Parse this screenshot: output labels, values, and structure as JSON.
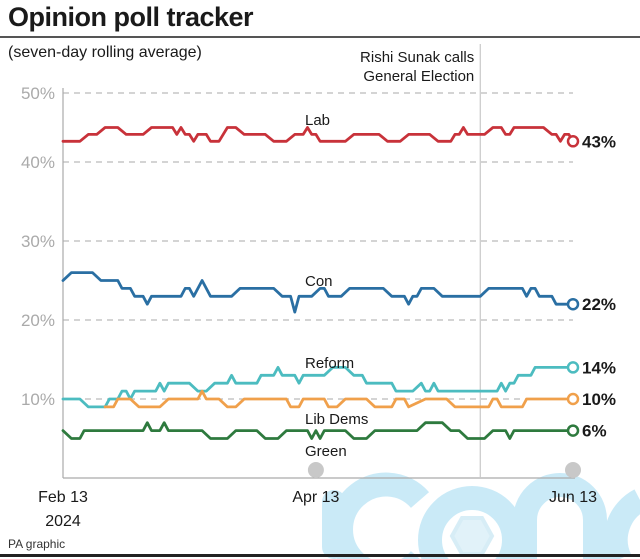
{
  "title": "Opinion poll tracker",
  "subtitle": "(seven-day rolling average)",
  "source": "PA graphic",
  "watermark": "iconic",
  "colors": {
    "Lab": "#c8323a",
    "Con": "#2a6fa3",
    "Reform": "#4cbcc0",
    "Lib Dems": "#f0a04b",
    "Green": "#2e7a3e",
    "grid": "#bbbbbb",
    "axis": "#aaaaaa"
  },
  "chart_data": {
    "type": "line",
    "title": "Opinion poll tracker",
    "subtitle": "(seven-day rolling average)",
    "xlabel": "",
    "ylabel": "",
    "ylim": [
      0,
      50
    ],
    "xlim_days": [
      0,
      121
    ],
    "grid": true,
    "y_ticks": [
      {
        "value": 50,
        "label": "50%"
      },
      {
        "value": 40,
        "label": "40%"
      },
      {
        "value": 30,
        "label": "30%"
      },
      {
        "value": 20,
        "label": "20%"
      },
      {
        "value": 10,
        "label": "10%"
      }
    ],
    "x_ticks": [
      {
        "day": 0,
        "label": "Feb 13",
        "sublabel": "2024"
      },
      {
        "day": 60,
        "label": "Apr 13",
        "sublabel": ""
      },
      {
        "day": 121,
        "label": "Jun 13",
        "sublabel": ""
      }
    ],
    "annotation": {
      "day": 99,
      "lines": [
        "Rishi Sunak calls",
        "General Election"
      ]
    },
    "series": [
      {
        "name": "Lab",
        "label": "Lab",
        "end_label": "43%",
        "end_value": 43,
        "points": [
          [
            0,
            43
          ],
          [
            4,
            43
          ],
          [
            6,
            44
          ],
          [
            8,
            44
          ],
          [
            10,
            45
          ],
          [
            13,
            45
          ],
          [
            15,
            44
          ],
          [
            19,
            44
          ],
          [
            21,
            45
          ],
          [
            26,
            45
          ],
          [
            27,
            44
          ],
          [
            28,
            45
          ],
          [
            29,
            44
          ],
          [
            30,
            44
          ],
          [
            31,
            43
          ],
          [
            32,
            44
          ],
          [
            34,
            44
          ],
          [
            35,
            43
          ],
          [
            37,
            43
          ],
          [
            39,
            45
          ],
          [
            41,
            45
          ],
          [
            43,
            44
          ],
          [
            48,
            44
          ],
          [
            50,
            43
          ],
          [
            53,
            43
          ],
          [
            55,
            44
          ],
          [
            57,
            44
          ],
          [
            58,
            45
          ],
          [
            59,
            44
          ],
          [
            60,
            44
          ],
          [
            61,
            43
          ],
          [
            67,
            43
          ],
          [
            69,
            44
          ],
          [
            75,
            44
          ],
          [
            77,
            43
          ],
          [
            80,
            43
          ],
          [
            82,
            44
          ],
          [
            87,
            44
          ],
          [
            89,
            43
          ],
          [
            92,
            43
          ],
          [
            93,
            44
          ],
          [
            94,
            44
          ],
          [
            95,
            45
          ],
          [
            96,
            44
          ],
          [
            100,
            44
          ],
          [
            102,
            45
          ],
          [
            104,
            45
          ],
          [
            105,
            44
          ],
          [
            106,
            44
          ],
          [
            107,
            45
          ],
          [
            114,
            45
          ],
          [
            116,
            44
          ],
          [
            117,
            44
          ],
          [
            118,
            43
          ],
          [
            119,
            44
          ],
          [
            120,
            44
          ],
          [
            121,
            43
          ]
        ]
      },
      {
        "name": "Con",
        "label": "Con",
        "end_label": "22%",
        "end_value": 22,
        "points": [
          [
            0,
            25
          ],
          [
            2,
            26
          ],
          [
            7,
            26
          ],
          [
            9,
            25
          ],
          [
            13,
            25
          ],
          [
            14,
            24
          ],
          [
            16,
            24
          ],
          [
            17,
            23
          ],
          [
            19,
            23
          ],
          [
            20,
            22
          ],
          [
            21,
            23
          ],
          [
            28,
            23
          ],
          [
            29,
            24
          ],
          [
            30,
            24
          ],
          [
            31,
            23
          ],
          [
            33,
            25
          ],
          [
            35,
            23
          ],
          [
            40,
            23
          ],
          [
            42,
            24
          ],
          [
            50,
            24
          ],
          [
            52,
            23
          ],
          [
            54,
            23
          ],
          [
            55,
            21
          ],
          [
            56,
            23
          ],
          [
            59,
            23
          ],
          [
            61,
            24
          ],
          [
            62,
            24
          ],
          [
            63,
            23
          ],
          [
            66,
            23
          ],
          [
            68,
            24
          ],
          [
            76,
            24
          ],
          [
            78,
            23
          ],
          [
            81,
            23
          ],
          [
            82,
            22
          ],
          [
            83,
            23
          ],
          [
            84,
            23
          ],
          [
            85,
            24
          ],
          [
            88,
            24
          ],
          [
            90,
            23
          ],
          [
            99,
            23
          ],
          [
            101,
            24
          ],
          [
            109,
            24
          ],
          [
            110,
            23
          ],
          [
            111,
            24
          ],
          [
            112,
            24
          ],
          [
            113,
            23
          ],
          [
            116,
            23
          ],
          [
            117,
            22
          ],
          [
            119,
            22
          ],
          [
            121,
            22
          ]
        ]
      },
      {
        "name": "Reform",
        "label": "Reform",
        "end_label": "14%",
        "end_value": 14,
        "points": [
          [
            0,
            10
          ],
          [
            4,
            10
          ],
          [
            6,
            9
          ],
          [
            10,
            9
          ],
          [
            11,
            10
          ],
          [
            13,
            10
          ],
          [
            14,
            11
          ],
          [
            15,
            11
          ],
          [
            16,
            10
          ],
          [
            17,
            11
          ],
          [
            22,
            11
          ],
          [
            23,
            12
          ],
          [
            24,
            11
          ],
          [
            25,
            12
          ],
          [
            30,
            12
          ],
          [
            32,
            11
          ],
          [
            34,
            11
          ],
          [
            36,
            12
          ],
          [
            39,
            12
          ],
          [
            40,
            13
          ],
          [
            41,
            12
          ],
          [
            46,
            12
          ],
          [
            47,
            13
          ],
          [
            50,
            13
          ],
          [
            51,
            14
          ],
          [
            52,
            13
          ],
          [
            55,
            13
          ],
          [
            56,
            12
          ],
          [
            57,
            13
          ],
          [
            60,
            13
          ],
          [
            62,
            13
          ],
          [
            64,
            14
          ],
          [
            67,
            14
          ],
          [
            69,
            13
          ],
          [
            71,
            13
          ],
          [
            72,
            12
          ],
          [
            78,
            12
          ],
          [
            79,
            11
          ],
          [
            83,
            11
          ],
          [
            85,
            12
          ],
          [
            86,
            11
          ],
          [
            87,
            11
          ],
          [
            88,
            12
          ],
          [
            89,
            11
          ],
          [
            99,
            11
          ],
          [
            103,
            11
          ],
          [
            104,
            12
          ],
          [
            105,
            11
          ],
          [
            106,
            12
          ],
          [
            107,
            12
          ],
          [
            108,
            13
          ],
          [
            111,
            13
          ],
          [
            112,
            14
          ],
          [
            115,
            14
          ],
          [
            116,
            14
          ],
          [
            117,
            14
          ],
          [
            121,
            14
          ]
        ]
      },
      {
        "name": "Lib Dems",
        "label": "Lib Dems",
        "end_label": "10%",
        "end_value": 10,
        "points": [
          [
            0,
            null
          ],
          [
            10,
            null
          ],
          [
            10,
            9
          ],
          [
            12,
            9
          ],
          [
            13,
            10
          ],
          [
            16,
            10
          ],
          [
            18,
            9
          ],
          [
            23,
            9
          ],
          [
            25,
            10
          ],
          [
            32,
            10
          ],
          [
            33,
            11
          ],
          [
            34,
            10
          ],
          [
            37,
            10
          ],
          [
            39,
            9
          ],
          [
            41,
            9
          ],
          [
            43,
            10
          ],
          [
            53,
            10
          ],
          [
            54,
            9
          ],
          [
            56,
            9
          ],
          [
            57,
            10
          ],
          [
            62,
            10
          ],
          [
            63,
            9
          ],
          [
            65,
            9
          ],
          [
            67,
            10
          ],
          [
            72,
            10
          ],
          [
            74,
            9
          ],
          [
            78,
            9
          ],
          [
            79,
            10
          ],
          [
            81,
            10
          ],
          [
            82,
            9
          ],
          [
            86,
            10
          ],
          [
            91,
            10
          ],
          [
            93,
            9
          ],
          [
            99,
            9
          ],
          [
            101,
            9
          ],
          [
            102,
            10
          ],
          [
            103,
            10
          ],
          [
            104,
            9
          ],
          [
            109,
            9
          ],
          [
            110,
            10
          ],
          [
            121,
            10
          ]
        ]
      },
      {
        "name": "Green",
        "label": "Green",
        "end_label": "6%",
        "end_value": 6,
        "points": [
          [
            0,
            6
          ],
          [
            2,
            5
          ],
          [
            4,
            5
          ],
          [
            5,
            6
          ],
          [
            19,
            6
          ],
          [
            20,
            7
          ],
          [
            21,
            6
          ],
          [
            23,
            6
          ],
          [
            24,
            7
          ],
          [
            25,
            6
          ],
          [
            33,
            6
          ],
          [
            35,
            5
          ],
          [
            39,
            5
          ],
          [
            41,
            6
          ],
          [
            46,
            6
          ],
          [
            48,
            5
          ],
          [
            51,
            5
          ],
          [
            53,
            6
          ],
          [
            58,
            6
          ],
          [
            59,
            5
          ],
          [
            60,
            6
          ],
          [
            61,
            5
          ],
          [
            62,
            6
          ],
          [
            67,
            6
          ],
          [
            69,
            5
          ],
          [
            72,
            5
          ],
          [
            74,
            6
          ],
          [
            84,
            6
          ],
          [
            86,
            7
          ],
          [
            90,
            7
          ],
          [
            92,
            6
          ],
          [
            94,
            6
          ],
          [
            96,
            5
          ],
          [
            100,
            5
          ],
          [
            102,
            6
          ],
          [
            105,
            6
          ],
          [
            106,
            5
          ],
          [
            107,
            6
          ],
          [
            117,
            6
          ],
          [
            121,
            6
          ]
        ]
      }
    ]
  }
}
